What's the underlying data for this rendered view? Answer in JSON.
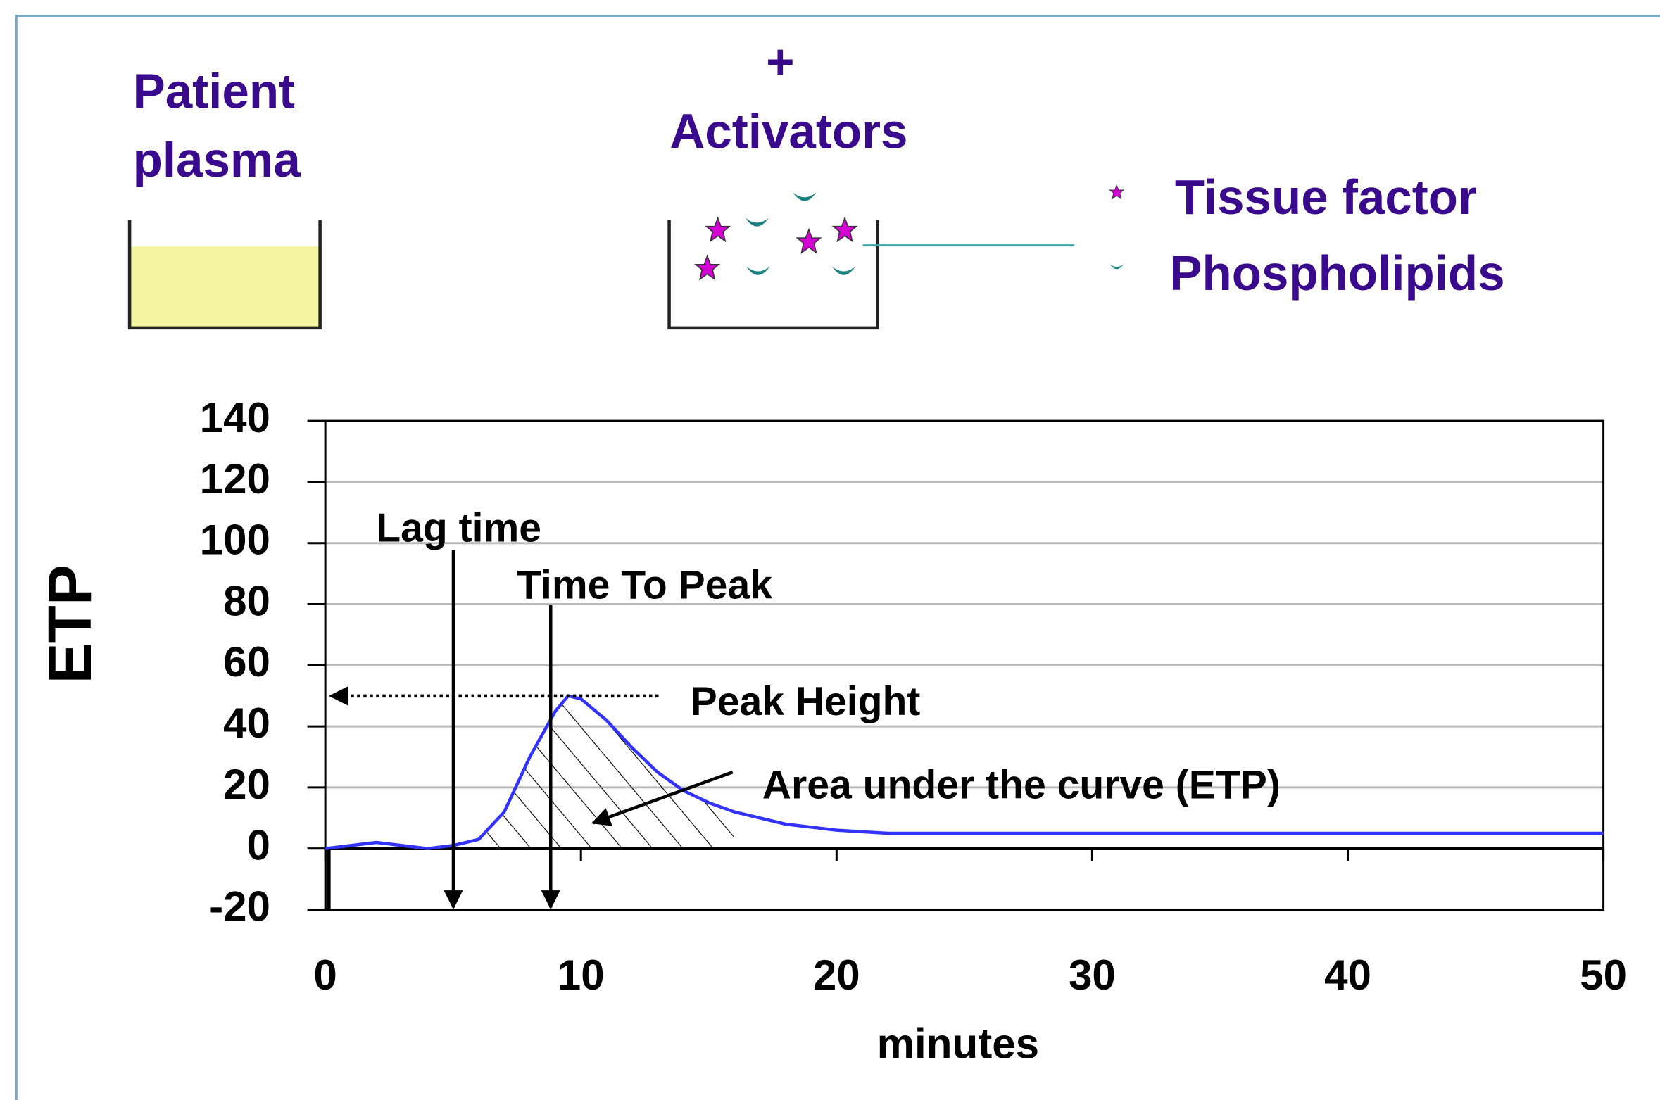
{
  "diagram": {
    "sample_label": [
      "Patient",
      "plasma"
    ],
    "plus": "+",
    "reagent_label": "Activators",
    "legend": [
      {
        "label": "Tissue factor"
      },
      {
        "label": "Phospholipids"
      }
    ]
  },
  "chart_data": {
    "type": "line",
    "ylabel": "ETP",
    "xlabel": "minutes",
    "annotations": [
      "Lag time",
      "Time To Peak",
      "Peak Height",
      "Area under the curve (ETP)"
    ],
    "x": [
      0,
      1,
      2,
      3,
      4,
      5,
      5.5,
      6,
      7,
      8,
      9,
      9.5,
      10,
      11,
      12,
      13,
      14,
      15,
      16,
      17,
      18,
      19,
      20,
      22,
      25,
      30,
      35,
      40,
      45,
      50
    ],
    "series": [
      {
        "name": "ETP",
        "color": "#3333ff",
        "values": [
          0,
          1,
          2,
          1,
          0,
          1,
          2,
          3,
          12,
          30,
          45,
          50,
          49,
          42,
          33,
          25,
          19,
          15,
          12,
          10,
          8,
          7,
          6,
          5,
          5,
          5,
          5,
          5,
          5,
          5
        ]
      }
    ],
    "xlim": [
      0,
      50
    ],
    "xticks": [
      0,
      10,
      20,
      30,
      40,
      50
    ],
    "ylim": [
      -20,
      140
    ],
    "yticks": [
      -20,
      0,
      20,
      40,
      60,
      80,
      100,
      120,
      140
    ],
    "grid": true
  }
}
